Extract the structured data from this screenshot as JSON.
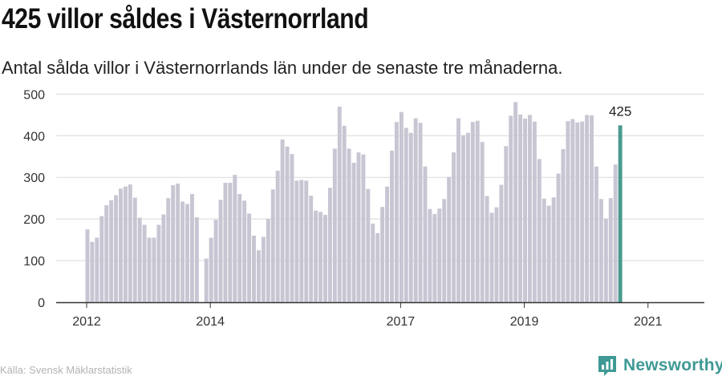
{
  "header": {
    "title": "425 villor såldes i Västernorrland",
    "subtitle": "Antal sålda villor i Västernorrlands län under de senaste tre månaderna."
  },
  "footer": {
    "source": "Källa: Svensk Mäklarstatistik",
    "brand": "Newsworthy",
    "brand_color": "#3f9994"
  },
  "chart_data": {
    "type": "bar",
    "y_ticks": [
      0,
      100,
      200,
      300,
      400,
      500
    ],
    "ylim": [
      0,
      520
    ],
    "x_ticks": [
      "2012",
      "2014",
      "2017",
      "2019",
      "2021"
    ],
    "x_tick_index": [
      0,
      26,
      66,
      92,
      118
    ],
    "bar_color": "#c8c6d3",
    "highlight_color": "#4a9a8f",
    "highlight_label": "425",
    "grid": true,
    "values": [
      175,
      145,
      155,
      207,
      233,
      245,
      257,
      273,
      278,
      283,
      251,
      203,
      186,
      155,
      155,
      186,
      211,
      250,
      281,
      285,
      242,
      236,
      260,
      204,
      0,
      105,
      155,
      198,
      246,
      287,
      287,
      306,
      260,
      244,
      213,
      160,
      125,
      157,
      200,
      271,
      316,
      391,
      374,
      356,
      292,
      294,
      292,
      256,
      220,
      217,
      210,
      275,
      369,
      470,
      424,
      369,
      335,
      360,
      355,
      272,
      189,
      166,
      229,
      278,
      364,
      433,
      457,
      419,
      407,
      442,
      431,
      326,
      224,
      212,
      225,
      248,
      301,
      360,
      442,
      401,
      407,
      433,
      436,
      385,
      255,
      215,
      228,
      282,
      375,
      448,
      481,
      451,
      441,
      450,
      434,
      344,
      249,
      232,
      252,
      309,
      368,
      435,
      440,
      432,
      434,
      450,
      449,
      326,
      248,
      201,
      250,
      331,
      425
    ]
  }
}
